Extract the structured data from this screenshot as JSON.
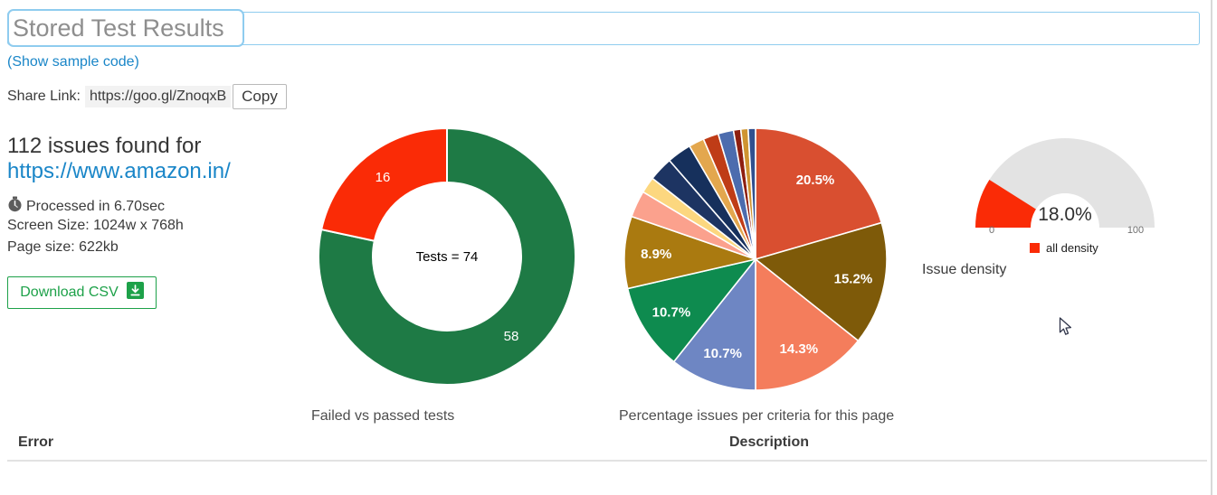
{
  "title_input": {
    "value": "Stored Test Results"
  },
  "sample_code_link": "(Show sample code)",
  "share": {
    "label": "Share Link:",
    "url": "https://goo.gl/ZnoqxB",
    "copy_label": "Copy"
  },
  "summary": {
    "issues_heading": "112 issues found for",
    "site_url": "https://www.amazon.in/",
    "processed": "Processed in 6.70sec",
    "screen_size": "Screen Size: 1024w x 768h",
    "page_size": "Page size: 622kb",
    "download_csv_label": "Download CSV"
  },
  "table": {
    "error_header": "Error",
    "description_header": "Description"
  },
  "colors": {
    "accent_blue": "#1a86c8",
    "input_border": "#8fccef",
    "button_green": "#1da149",
    "divider_gray": "#e2e2e2"
  },
  "chart_data": [
    {
      "type": "donut",
      "title": "Failed vs passed tests",
      "center_label": "Tests = 74",
      "total_tests": 74,
      "slices": [
        {
          "name": "passed",
          "value": 58,
          "label": "58",
          "color": "#1e7a45"
        },
        {
          "name": "failed",
          "value": 16,
          "label": "16",
          "color": "#fa2b06"
        }
      ]
    },
    {
      "type": "pie",
      "title": "Percentage issues per criteria for this page",
      "slices": [
        {
          "value": 20.5,
          "label": "20.5%",
          "color": "#d94f30"
        },
        {
          "value": 15.2,
          "label": "15.2%",
          "color": "#7e5a09"
        },
        {
          "value": 14.3,
          "label": "14.3%",
          "color": "#f47d5c"
        },
        {
          "value": 10.7,
          "label": "10.7%",
          "color": "#6e86c3"
        },
        {
          "value": 10.7,
          "label": "10.7%",
          "color": "#0e8b4f"
        },
        {
          "value": 8.9,
          "label": "8.9%",
          "color": "#aa7a10"
        },
        {
          "value": 3.3,
          "label": "",
          "color": "#fba18d"
        },
        {
          "value": 2.0,
          "label": "",
          "color": "#fcd77f"
        },
        {
          "value": 3.0,
          "label": "",
          "color": "#1d3462"
        },
        {
          "value": 3.0,
          "label": "",
          "color": "#16305c"
        },
        {
          "value": 1.9,
          "label": "",
          "color": "#e3a74e"
        },
        {
          "value": 1.9,
          "label": "",
          "color": "#bf3c17"
        },
        {
          "value": 1.9,
          "label": "",
          "color": "#4c6cae"
        },
        {
          "value": 0.9,
          "label": "",
          "color": "#8e1f10"
        },
        {
          "value": 0.9,
          "label": "",
          "color": "#cf9431"
        },
        {
          "value": 0.9,
          "label": "",
          "color": "#31508f"
        }
      ]
    },
    {
      "type": "gauge",
      "title": "Issue density",
      "value": 18.0,
      "value_label": "18.0%",
      "min": 0,
      "max": 100,
      "min_label": "0",
      "max_label": "100",
      "legend": "all density",
      "color": "#fa2b06",
      "track_color": "#e3e3e3"
    }
  ]
}
